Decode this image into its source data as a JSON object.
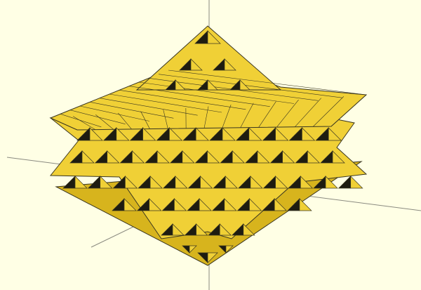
{
  "viewport": {
    "background": "#ffffe5",
    "axis_color": "#8a8a80"
  },
  "model": {
    "shape": "fractal-pyramid-lattice",
    "face_light": "#f0d036",
    "face_mid": "#d7b41d",
    "face_dark": "#1e1c10",
    "edge": "#3a3620"
  }
}
